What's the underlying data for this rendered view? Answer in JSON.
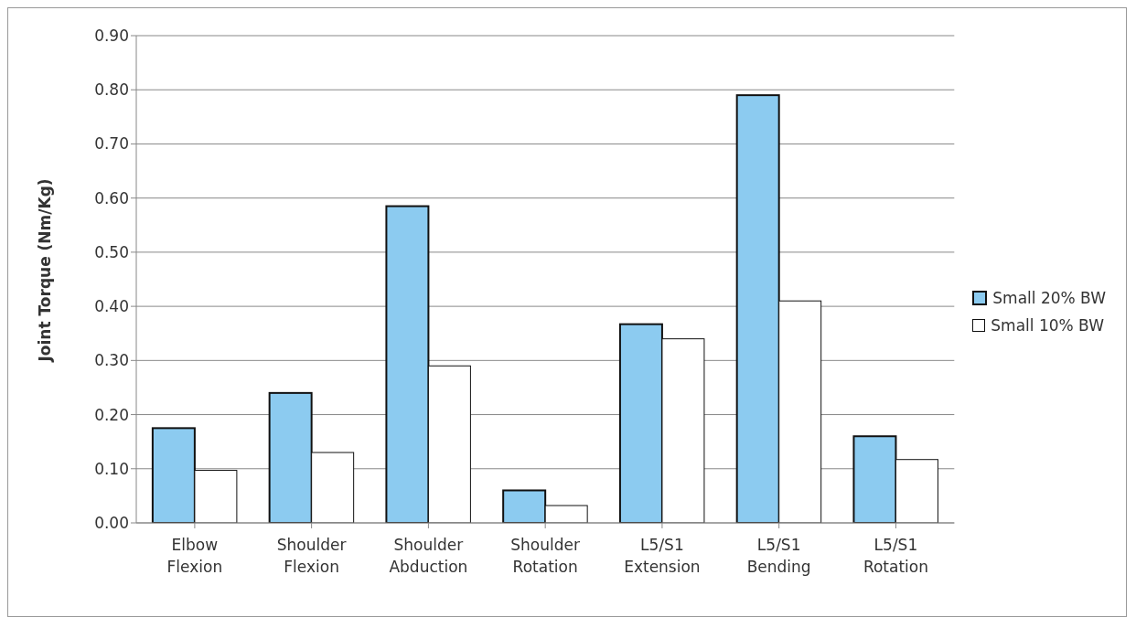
{
  "chart_data": {
    "type": "bar",
    "ylabel": "Joint Torque (Nm/Kg)",
    "categories": [
      "Elbow Flexion",
      "Shoulder Flexion",
      "Shoulder Abduction",
      "Shoulder Rotation",
      "L5/S1 Extension",
      "L5/S1 Bending",
      "L5/S1 Rotation"
    ],
    "series": [
      {
        "name": "Small 20% BW",
        "color": "#8ccbf0",
        "values": [
          0.175,
          0.24,
          0.585,
          0.06,
          0.367,
          0.79,
          0.16
        ]
      },
      {
        "name": "Small 10% BW",
        "color": "#ffffff",
        "values": [
          0.097,
          0.13,
          0.29,
          0.032,
          0.34,
          0.41,
          0.117
        ]
      }
    ],
    "ylim": [
      0,
      0.9
    ],
    "yticks": [
      {
        "value": 0,
        "label": "0.00"
      },
      {
        "value": 0.1,
        "label": "0.10"
      },
      {
        "value": 0.2,
        "label": "0.20"
      },
      {
        "value": 0.3,
        "label": "0.30"
      },
      {
        "value": 0.4,
        "label": "0.40"
      },
      {
        "value": 0.5,
        "label": "0.50"
      },
      {
        "value": 0.6,
        "label": "0.60"
      },
      {
        "value": 0.7,
        "label": "0.70"
      },
      {
        "value": 0.8,
        "label": "0.80"
      },
      {
        "value": 0.9,
        "label": "0.90"
      }
    ],
    "grid": "y",
    "legend": "right"
  }
}
